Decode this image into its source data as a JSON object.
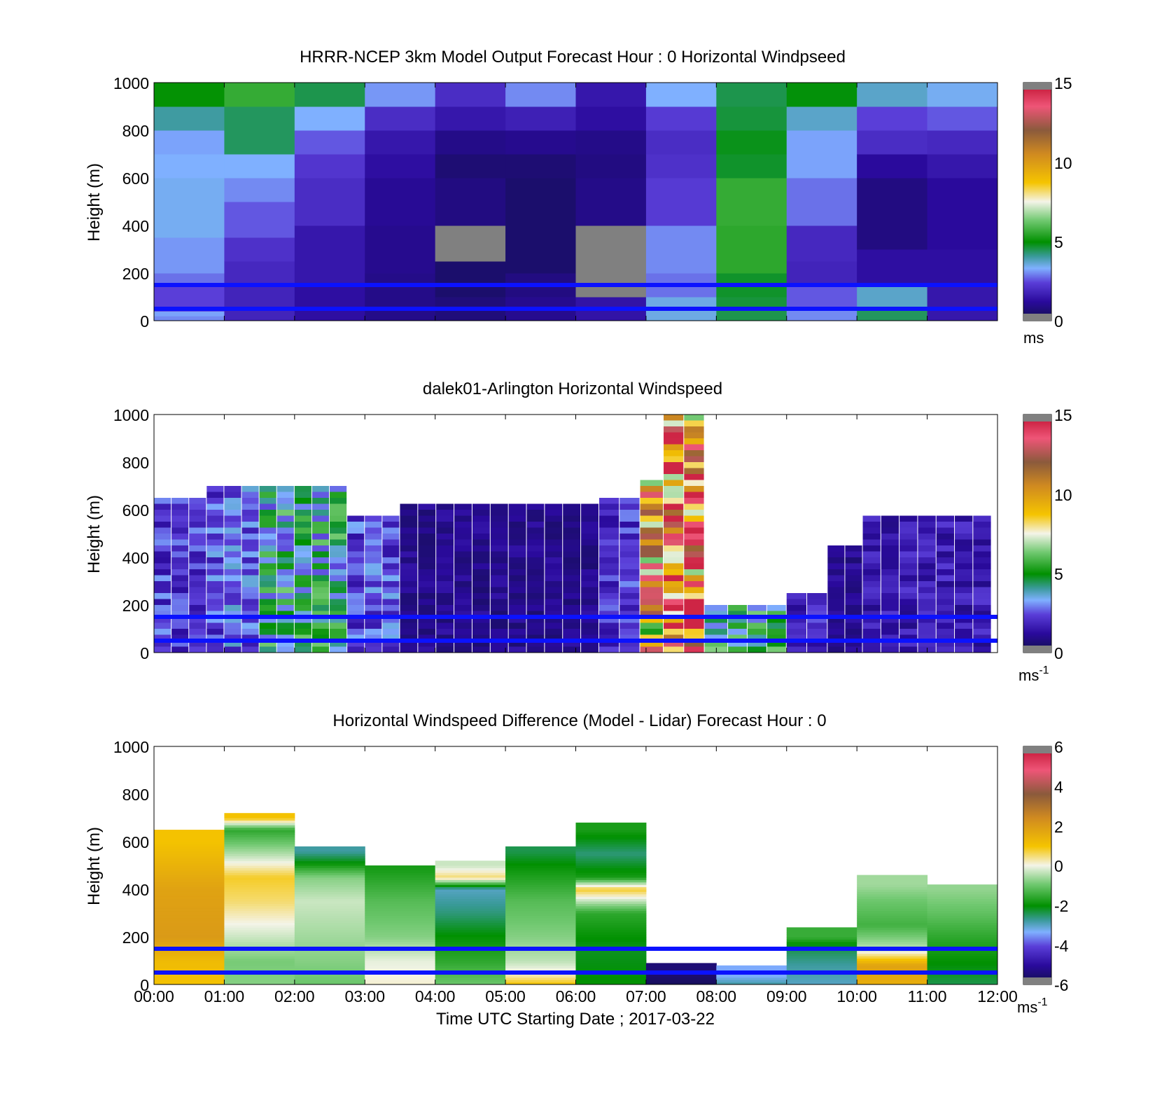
{
  "figure": {
    "xlabel": "Time UTC  Starting Date ; 2017-03-22",
    "x_ticks": [
      "00:00",
      "01:00",
      "02:00",
      "03:00",
      "04:00",
      "05:00",
      "06:00",
      "07:00",
      "08:00",
      "09:00",
      "10:00",
      "11:00",
      "12:00"
    ]
  },
  "chart_data": [
    {
      "type": "heatmap",
      "title": "HRRR-NCEP 3km Model Output   Forecast Hour : 0 Horizontal Windpseed",
      "ylabel": "Height (m)",
      "ylim": [
        0,
        1000
      ],
      "y_ticks": [
        "0",
        "200",
        "400",
        "600",
        "800",
        "1000"
      ],
      "xlim": [
        "00:00",
        "12:00"
      ],
      "colorbar": {
        "range": [
          0,
          15
        ],
        "ticks": [
          "0",
          "5",
          "10",
          "15"
        ],
        "unit": "ms"
      },
      "reference_heights": [
        150,
        50
      ],
      "columns": [
        {
          "time": "00:00",
          "levels": [
            [
              0,
              3.0
            ],
            [
              20,
              3.2
            ],
            [
              40,
              2.4
            ],
            [
              150,
              2.8
            ],
            [
              200,
              3.1
            ],
            [
              350,
              3.4
            ],
            [
              600,
              3.3
            ],
            [
              700,
              3.2
            ],
            [
              800,
              4.0
            ],
            [
              900,
              5.0
            ]
          ]
        },
        {
          "time": "01:00",
          "levels": [
            [
              0,
              1.8
            ],
            [
              50,
              1.8
            ],
            [
              150,
              1.9
            ],
            [
              250,
              2.1
            ],
            [
              350,
              2.6
            ],
            [
              500,
              3.0
            ],
            [
              600,
              3.3
            ],
            [
              700,
              4.4
            ],
            [
              900,
              5.6
            ]
          ]
        },
        {
          "time": "02:00",
          "levels": [
            [
              0,
              1.3
            ],
            [
              150,
              1.5
            ],
            [
              400,
              2.0
            ],
            [
              600,
              2.2
            ],
            [
              700,
              2.6
            ],
            [
              800,
              3.3
            ],
            [
              900,
              4.5
            ]
          ]
        },
        {
          "time": "03:00",
          "levels": [
            [
              0,
              0.9
            ],
            [
              200,
              1.0
            ],
            [
              400,
              1.1
            ],
            [
              600,
              1.3
            ],
            [
              700,
              1.5
            ],
            [
              800,
              2.0
            ],
            [
              900,
              3.1
            ]
          ]
        },
        {
          "time": "04:00",
          "levels": [
            [
              0,
              0.7
            ],
            [
              100,
              0.5
            ],
            [
              250,
              0.0
            ],
            [
              400,
              0.8
            ],
            [
              600,
              0.6
            ],
            [
              700,
              0.9
            ],
            [
              800,
              1.5
            ],
            [
              900,
              2.0
            ]
          ]
        },
        {
          "time": "05:00",
          "levels": [
            [
              0,
              1.0
            ],
            [
              100,
              0.8
            ],
            [
              200,
              0.5
            ],
            [
              600,
              0.6
            ],
            [
              700,
              1.0
            ],
            [
              800,
              1.7
            ],
            [
              900,
              3.0
            ]
          ]
        },
        {
          "time": "06:00",
          "levels": [
            [
              0,
              1.4
            ],
            [
              100,
              0.0
            ],
            [
              300,
              0.0
            ],
            [
              400,
              0.9
            ],
            [
              600,
              0.8
            ],
            [
              700,
              0.9
            ],
            [
              800,
              1.3
            ],
            [
              900,
              1.5
            ]
          ]
        },
        {
          "time": "07:00",
          "levels": [
            [
              0,
              3.5
            ],
            [
              100,
              2.8
            ],
            [
              200,
              3.0
            ],
            [
              400,
              2.3
            ],
            [
              600,
              2.1
            ],
            [
              700,
              2.0
            ],
            [
              800,
              2.3
            ],
            [
              900,
              3.3
            ]
          ]
        },
        {
          "time": "08:00",
          "levels": [
            [
              0,
              4.5
            ],
            [
              50,
              4.6
            ],
            [
              100,
              4.7
            ],
            [
              200,
              5.5
            ],
            [
              400,
              5.6
            ],
            [
              600,
              4.7
            ],
            [
              700,
              4.8
            ],
            [
              800,
              4.6
            ],
            [
              900,
              4.5
            ]
          ]
        },
        {
          "time": "09:00",
          "levels": [
            [
              0,
              3.0
            ],
            [
              50,
              2.6
            ],
            [
              150,
              1.8
            ],
            [
              250,
              1.9
            ],
            [
              400,
              2.8
            ],
            [
              600,
              3.2
            ],
            [
              800,
              3.7
            ],
            [
              900,
              4.9
            ]
          ]
        },
        {
          "time": "10:00",
          "levels": [
            [
              0,
              4.4
            ],
            [
              50,
              3.7
            ],
            [
              150,
              1.3
            ],
            [
              300,
              0.8
            ],
            [
              600,
              1.2
            ],
            [
              700,
              2.0
            ],
            [
              800,
              2.4
            ],
            [
              900,
              3.7
            ]
          ]
        },
        {
          "time": "11:00",
          "levels": [
            [
              0,
              1.5
            ],
            [
              150,
              1.3
            ],
            [
              300,
              1.2
            ],
            [
              600,
              1.5
            ],
            [
              700,
              1.9
            ],
            [
              800,
              2.6
            ],
            [
              900,
              3.4
            ]
          ]
        }
      ]
    },
    {
      "type": "heatmap",
      "title": "dalek01-Arlington  Horizontal Windspeed",
      "ylabel": "Height (m)",
      "ylim": [
        0,
        1000
      ],
      "y_ticks": [
        "0",
        "200",
        "400",
        "600",
        "800",
        "1000"
      ],
      "xlim": [
        "00:00",
        "12:00"
      ],
      "colorbar": {
        "range": [
          0,
          15
        ],
        "ticks": [
          "0",
          "5",
          "10",
          "15"
        ],
        "unit": "ms",
        "unit_exponent": "-1"
      },
      "reference_heights": [
        150,
        50
      ],
      "profiles": [
        {
          "from": "00:00",
          "to": "00:45",
          "top": 650,
          "speed": 2.2
        },
        {
          "from": "00:45",
          "to": "01:30",
          "top": 700,
          "speed": 2.6
        },
        {
          "from": "01:30",
          "to": "02:45",
          "top": 680,
          "speed": 4.4
        },
        {
          "from": "02:45",
          "to": "03:30",
          "top": 560,
          "speed": 2.4
        },
        {
          "from": "03:30",
          "to": "06:20",
          "top": 620,
          "speed": 1.0
        },
        {
          "from": "06:20",
          "to": "06:55",
          "top": 640,
          "speed": 2.2
        },
        {
          "from": "06:55",
          "to": "07:15",
          "top": 720,
          "speed": 9.5
        },
        {
          "from": "07:15",
          "to": "07:50",
          "top": 980,
          "speed": 11.5
        },
        {
          "from": "07:50",
          "to": "08:10",
          "top": 200,
          "speed": 5.2
        },
        {
          "from": "08:10",
          "to": "09:00",
          "top": 180,
          "speed": 4.5
        },
        {
          "from": "09:00",
          "to": "09:35",
          "top": 250,
          "speed": 1.8
        },
        {
          "from": "09:35",
          "to": "10:05",
          "top": 450,
          "speed": 1.0
        },
        {
          "from": "10:05",
          "to": "11:55",
          "top": 560,
          "speed": 1.6
        }
      ]
    },
    {
      "type": "heatmap",
      "title": "Horizontal Windspeed Difference (Model - Lidar) Forecast Hour : 0",
      "ylabel": "Height (m)",
      "ylim": [
        0,
        1000
      ],
      "y_ticks": [
        "0",
        "200",
        "400",
        "600",
        "800",
        "1000"
      ],
      "xlim": [
        "00:00",
        "12:00"
      ],
      "colorbar": {
        "range": [
          -6,
          6
        ],
        "ticks": [
          "-6",
          "-4",
          "-2",
          "0",
          "2",
          "4",
          "6"
        ],
        "unit": "ms",
        "unit_exponent": "-1"
      },
      "reference_heights": [
        150,
        50
      ],
      "columns": [
        {
          "time": "00:00",
          "top": 650,
          "levels": [
            [
              0,
              1.0
            ],
            [
              100,
              1.2
            ],
            [
              200,
              2.0
            ],
            [
              400,
              1.8
            ],
            [
              600,
              1.0
            ]
          ]
        },
        {
          "time": "01:00",
          "top": 720,
          "levels": [
            [
              0,
              -0.8
            ],
            [
              100,
              -0.9
            ],
            [
              200,
              -0.3
            ],
            [
              350,
              0.5
            ],
            [
              450,
              0.8
            ],
            [
              550,
              -0.5
            ],
            [
              650,
              -1.6
            ],
            [
              700,
              1.0
            ]
          ]
        },
        {
          "time": "02:00",
          "top": 580,
          "levels": [
            [
              0,
              -1.0
            ],
            [
              200,
              -0.6
            ],
            [
              350,
              -0.3
            ],
            [
              450,
              -0.8
            ],
            [
              520,
              -2.2
            ],
            [
              560,
              -2.8
            ]
          ]
        },
        {
          "time": "03:00",
          "top": 500,
          "levels": [
            [
              0,
              0.1
            ],
            [
              100,
              -0.1
            ],
            [
              200,
              -0.8
            ],
            [
              350,
              -1.2
            ],
            [
              480,
              -1.8
            ]
          ]
        },
        {
          "time": "04:00",
          "top": 520,
          "levels": [
            [
              0,
              -1.0
            ],
            [
              100,
              -1.6
            ],
            [
              200,
              -2.0
            ],
            [
              300,
              -2.6
            ],
            [
              400,
              -3.0
            ],
            [
              450,
              0.5
            ],
            [
              500,
              -0.3
            ]
          ]
        },
        {
          "time": "05:00",
          "top": 580,
          "levels": [
            [
              0,
              1.0
            ],
            [
              40,
              0.2
            ],
            [
              100,
              -0.4
            ],
            [
              200,
              -0.8
            ],
            [
              350,
              -1.2
            ],
            [
              500,
              -2.0
            ],
            [
              560,
              -2.4
            ]
          ]
        },
        {
          "time": "06:00",
          "top": 680,
          "levels": [
            [
              0,
              -2.0
            ],
            [
              150,
              -2.2
            ],
            [
              300,
              -1.6
            ],
            [
              400,
              0.8
            ],
            [
              450,
              -1.8
            ],
            [
              550,
              -2.6
            ],
            [
              650,
              -1.8
            ]
          ]
        },
        {
          "time": "07:00",
          "top": 90,
          "levels": [
            [
              0,
              -5.8
            ],
            [
              50,
              -5.5
            ]
          ]
        },
        {
          "time": "08:00",
          "top": 80,
          "levels": [
            [
              0,
              -2.8
            ],
            [
              40,
              -3.4
            ]
          ]
        },
        {
          "time": "09:00",
          "top": 240,
          "levels": [
            [
              0,
              -3.0
            ],
            [
              80,
              -2.8
            ],
            [
              150,
              -2.4
            ],
            [
              200,
              -1.5
            ]
          ]
        },
        {
          "time": "10:00",
          "top": 460,
          "levels": [
            [
              0,
              1.5
            ],
            [
              80,
              1.8
            ],
            [
              150,
              -0.4
            ],
            [
              250,
              -1.4
            ],
            [
              350,
              -1.0
            ],
            [
              420,
              -0.6
            ]
          ]
        },
        {
          "time": "11:00",
          "top": 420,
          "levels": [
            [
              0,
              -2.4
            ],
            [
              100,
              -2.0
            ],
            [
              200,
              -1.6
            ],
            [
              300,
              -1.1
            ],
            [
              400,
              -0.7
            ]
          ]
        }
      ]
    }
  ]
}
